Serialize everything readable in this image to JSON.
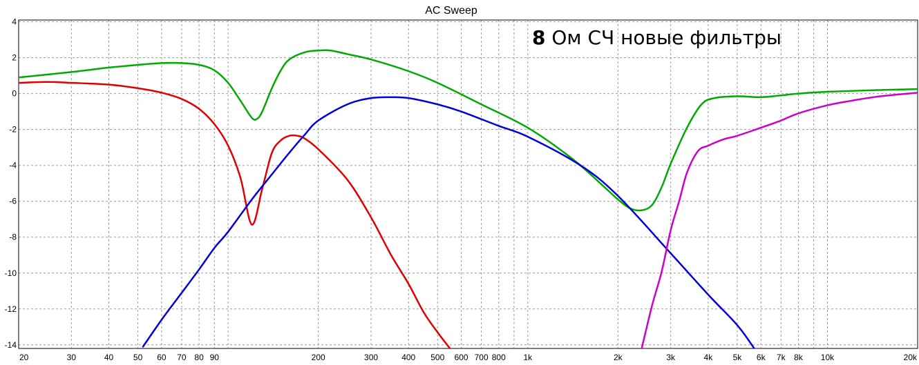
{
  "chart_data": {
    "type": "line",
    "title": "AC Sweep",
    "xlabel": "",
    "ylabel": "",
    "x_scale": "log",
    "xlim": [
      20,
      20000
    ],
    "ylim": [
      -14.2,
      4.1
    ],
    "grid": true,
    "annotation": {
      "bold": "8",
      "text": " Ом СЧ новые фильтры"
    },
    "y_ticks": [
      {
        "value": 4,
        "label": "4"
      },
      {
        "value": 2,
        "label": "2"
      },
      {
        "value": 0,
        "label": "0"
      },
      {
        "value": -2,
        "label": "-2"
      },
      {
        "value": -4,
        "label": "-4"
      },
      {
        "value": -6,
        "label": "-6"
      },
      {
        "value": -8,
        "label": "-8"
      },
      {
        "value": -10,
        "label": "-10"
      },
      {
        "value": -12,
        "label": "-12"
      },
      {
        "value": -14,
        "label": "-14"
      }
    ],
    "x_ticks": [
      {
        "value": 20,
        "label": "20"
      },
      {
        "value": 30,
        "label": "30"
      },
      {
        "value": 40,
        "label": "40"
      },
      {
        "value": 50,
        "label": "50"
      },
      {
        "value": 60,
        "label": "60"
      },
      {
        "value": 70,
        "label": "70"
      },
      {
        "value": 80,
        "label": "80"
      },
      {
        "value": 90,
        "label": "90"
      },
      {
        "value": 100,
        "label": ""
      },
      {
        "value": 200,
        "label": "200"
      },
      {
        "value": 300,
        "label": "300"
      },
      {
        "value": 400,
        "label": "400"
      },
      {
        "value": 500,
        "label": "500"
      },
      {
        "value": 600,
        "label": "600"
      },
      {
        "value": 700,
        "label": "700"
      },
      {
        "value": 800,
        "label": "800"
      },
      {
        "value": 900,
        "label": ""
      },
      {
        "value": 1000,
        "label": "1k"
      },
      {
        "value": 2000,
        "label": "2k"
      },
      {
        "value": 3000,
        "label": "3k"
      },
      {
        "value": 4000,
        "label": "4k"
      },
      {
        "value": 5000,
        "label": "5k"
      },
      {
        "value": 6000,
        "label": "6k"
      },
      {
        "value": 7000,
        "label": "7k"
      },
      {
        "value": 8000,
        "label": "8k"
      },
      {
        "value": 9000,
        "label": ""
      },
      {
        "value": 10000,
        "label": "10k"
      },
      {
        "value": 20000,
        "label": "20k"
      }
    ],
    "series": [
      {
        "color": "#e00000",
        "x": [
          20,
          25,
          30,
          40,
          50,
          60,
          70,
          80,
          90,
          100,
          110,
          120,
          130,
          140,
          150,
          160,
          170,
          180,
          200,
          250,
          300,
          350,
          400,
          450,
          500,
          550
        ],
        "y": [
          0.6,
          0.65,
          0.6,
          0.5,
          0.3,
          0.05,
          -0.3,
          -0.85,
          -1.7,
          -2.9,
          -4.7,
          -7.3,
          -5.3,
          -3.3,
          -2.6,
          -2.35,
          -2.35,
          -2.5,
          -3.1,
          -4.8,
          -6.9,
          -9.0,
          -10.6,
          -12.2,
          -13.3,
          -14.2
        ]
      },
      {
        "color": "#00aa00",
        "x": [
          20,
          30,
          40,
          50,
          60,
          70,
          80,
          90,
          100,
          110,
          120,
          125,
          130,
          140,
          150,
          160,
          180,
          200,
          220,
          250,
          300,
          400,
          500,
          700,
          1000,
          1400,
          1800,
          2000,
          2200,
          2400,
          2600,
          2800,
          3000,
          3400,
          3800,
          4200,
          5000,
          6000,
          7000,
          8000,
          10000,
          15000,
          20000
        ],
        "y": [
          0.9,
          1.2,
          1.45,
          1.6,
          1.7,
          1.7,
          1.6,
          1.3,
          0.6,
          -0.4,
          -1.35,
          -1.4,
          -1.0,
          0.3,
          1.3,
          1.9,
          2.3,
          2.4,
          2.4,
          2.2,
          1.9,
          1.25,
          0.6,
          -0.6,
          -1.9,
          -3.6,
          -5.2,
          -5.9,
          -6.4,
          -6.5,
          -6.2,
          -5.2,
          -3.9,
          -1.9,
          -0.6,
          -0.25,
          -0.15,
          -0.2,
          -0.1,
          0.0,
          0.1,
          0.2,
          0.25
        ]
      },
      {
        "color": "#0000dd",
        "x": [
          52,
          60,
          70,
          80,
          90,
          100,
          120,
          140,
          160,
          180,
          200,
          250,
          300,
          350,
          400,
          500,
          600,
          800,
          1000,
          1500,
          2000,
          3000,
          4000,
          5000,
          5700
        ],
        "y": [
          -14.1,
          -12.6,
          -11.1,
          -9.8,
          -8.6,
          -7.7,
          -5.9,
          -4.5,
          -3.3,
          -2.3,
          -1.5,
          -0.6,
          -0.25,
          -0.2,
          -0.25,
          -0.6,
          -1.0,
          -1.8,
          -2.4,
          -4.0,
          -5.7,
          -8.9,
          -11.2,
          -12.9,
          -14.2
        ]
      },
      {
        "color": "#cc00cc",
        "x": [
          2400,
          2600,
          2800,
          3000,
          3200,
          3400,
          3700,
          4000,
          4500,
          5000,
          6000,
          7000,
          8000,
          10000,
          12000,
          15000,
          20000
        ],
        "y": [
          -14.2,
          -11.8,
          -9.9,
          -7.6,
          -6.0,
          -4.4,
          -3.2,
          -2.9,
          -2.55,
          -2.35,
          -1.9,
          -1.5,
          -1.1,
          -0.65,
          -0.4,
          -0.15,
          0.05
        ]
      }
    ]
  }
}
